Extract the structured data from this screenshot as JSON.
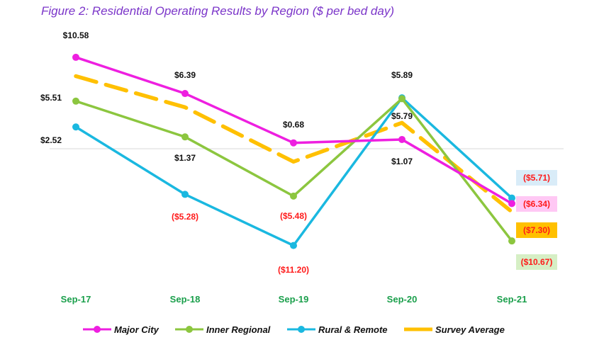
{
  "figure_title": "Figure 2: Residential Operating Results by Region ($ per bed day)",
  "chart_data": {
    "type": "line",
    "title": "Figure 2: Residential Operating Results by Region ($ per bed day)",
    "xlabel": "",
    "ylabel": "",
    "categories": [
      "Sep-17",
      "Sep-18",
      "Sep-19",
      "Sep-20",
      "Sep-21"
    ],
    "ylim": [
      -12,
      12
    ],
    "grid": false,
    "legend_position": "bottom",
    "series": [
      {
        "name": "Major City",
        "color": "#ee1fe0",
        "dashed": false,
        "values": [
          10.58,
          6.39,
          0.68,
          1.07,
          -6.34
        ],
        "labels": [
          "$10.58",
          "$6.39",
          "$0.68",
          "$1.07",
          "($6.34)"
        ]
      },
      {
        "name": "Inner Regional",
        "color": "#8cc63f",
        "dashed": false,
        "values": [
          5.51,
          1.37,
          -5.48,
          5.79,
          -10.67
        ],
        "labels": [
          "$5.51",
          "$1.37",
          "($5.48)",
          "$5.79",
          "($10.67)"
        ]
      },
      {
        "name": "Rural & Remote",
        "color": "#1ab8e0",
        "dashed": false,
        "values": [
          2.52,
          -5.28,
          -11.2,
          5.89,
          -5.71
        ],
        "labels": [
          "$2.52",
          "($5.28)",
          "($11.20)",
          "$5.89",
          "($5.71)"
        ]
      },
      {
        "name": "Survey Average",
        "color": "#ffc000",
        "dashed": true,
        "values": [
          8.4,
          4.8,
          -1.5,
          3.0,
          -7.3
        ],
        "labels": [
          "",
          "",
          "",
          "",
          "($7.30)"
        ]
      }
    ]
  }
}
